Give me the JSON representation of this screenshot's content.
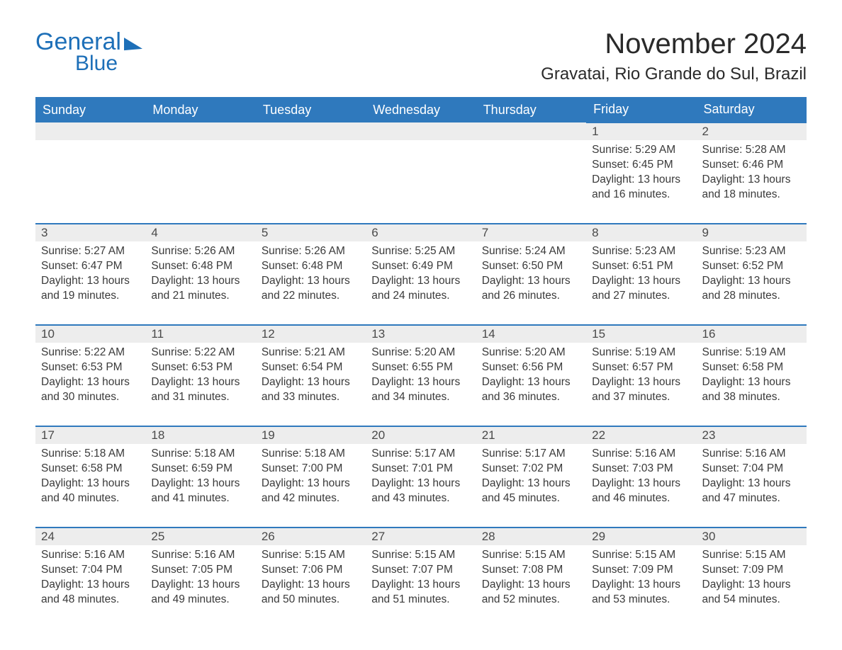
{
  "brand": {
    "line1": "General",
    "line2": "Blue",
    "color": "#1d6fb8"
  },
  "title": "November 2024",
  "location": "Gravatai, Rio Grande do Sul, Brazil",
  "colors": {
    "header_bg": "#2f79bd",
    "header_text": "#ffffff",
    "daynum_bg": "#ededed",
    "row_border": "#2f79bd",
    "body_text": "#3a3a3a",
    "page_bg": "#ffffff"
  },
  "typography": {
    "title_fontsize": 40,
    "location_fontsize": 24,
    "header_fontsize": 18,
    "daynum_fontsize": 17,
    "body_fontsize": 15.5
  },
  "layout": {
    "columns": 7,
    "weeks": 5,
    "start_weekday": "Sunday"
  },
  "weekdays": [
    "Sunday",
    "Monday",
    "Tuesday",
    "Wednesday",
    "Thursday",
    "Friday",
    "Saturday"
  ],
  "weeks": [
    [
      null,
      null,
      null,
      null,
      null,
      {
        "n": "1",
        "sunrise": "Sunrise: 5:29 AM",
        "sunset": "Sunset: 6:45 PM",
        "daylight": "Daylight: 13 hours and 16 minutes."
      },
      {
        "n": "2",
        "sunrise": "Sunrise: 5:28 AM",
        "sunset": "Sunset: 6:46 PM",
        "daylight": "Daylight: 13 hours and 18 minutes."
      }
    ],
    [
      {
        "n": "3",
        "sunrise": "Sunrise: 5:27 AM",
        "sunset": "Sunset: 6:47 PM",
        "daylight": "Daylight: 13 hours and 19 minutes."
      },
      {
        "n": "4",
        "sunrise": "Sunrise: 5:26 AM",
        "sunset": "Sunset: 6:48 PM",
        "daylight": "Daylight: 13 hours and 21 minutes."
      },
      {
        "n": "5",
        "sunrise": "Sunrise: 5:26 AM",
        "sunset": "Sunset: 6:48 PM",
        "daylight": "Daylight: 13 hours and 22 minutes."
      },
      {
        "n": "6",
        "sunrise": "Sunrise: 5:25 AM",
        "sunset": "Sunset: 6:49 PM",
        "daylight": "Daylight: 13 hours and 24 minutes."
      },
      {
        "n": "7",
        "sunrise": "Sunrise: 5:24 AM",
        "sunset": "Sunset: 6:50 PM",
        "daylight": "Daylight: 13 hours and 26 minutes."
      },
      {
        "n": "8",
        "sunrise": "Sunrise: 5:23 AM",
        "sunset": "Sunset: 6:51 PM",
        "daylight": "Daylight: 13 hours and 27 minutes."
      },
      {
        "n": "9",
        "sunrise": "Sunrise: 5:23 AM",
        "sunset": "Sunset: 6:52 PM",
        "daylight": "Daylight: 13 hours and 28 minutes."
      }
    ],
    [
      {
        "n": "10",
        "sunrise": "Sunrise: 5:22 AM",
        "sunset": "Sunset: 6:53 PM",
        "daylight": "Daylight: 13 hours and 30 minutes."
      },
      {
        "n": "11",
        "sunrise": "Sunrise: 5:22 AM",
        "sunset": "Sunset: 6:53 PM",
        "daylight": "Daylight: 13 hours and 31 minutes."
      },
      {
        "n": "12",
        "sunrise": "Sunrise: 5:21 AM",
        "sunset": "Sunset: 6:54 PM",
        "daylight": "Daylight: 13 hours and 33 minutes."
      },
      {
        "n": "13",
        "sunrise": "Sunrise: 5:20 AM",
        "sunset": "Sunset: 6:55 PM",
        "daylight": "Daylight: 13 hours and 34 minutes."
      },
      {
        "n": "14",
        "sunrise": "Sunrise: 5:20 AM",
        "sunset": "Sunset: 6:56 PM",
        "daylight": "Daylight: 13 hours and 36 minutes."
      },
      {
        "n": "15",
        "sunrise": "Sunrise: 5:19 AM",
        "sunset": "Sunset: 6:57 PM",
        "daylight": "Daylight: 13 hours and 37 minutes."
      },
      {
        "n": "16",
        "sunrise": "Sunrise: 5:19 AM",
        "sunset": "Sunset: 6:58 PM",
        "daylight": "Daylight: 13 hours and 38 minutes."
      }
    ],
    [
      {
        "n": "17",
        "sunrise": "Sunrise: 5:18 AM",
        "sunset": "Sunset: 6:58 PM",
        "daylight": "Daylight: 13 hours and 40 minutes."
      },
      {
        "n": "18",
        "sunrise": "Sunrise: 5:18 AM",
        "sunset": "Sunset: 6:59 PM",
        "daylight": "Daylight: 13 hours and 41 minutes."
      },
      {
        "n": "19",
        "sunrise": "Sunrise: 5:18 AM",
        "sunset": "Sunset: 7:00 PM",
        "daylight": "Daylight: 13 hours and 42 minutes."
      },
      {
        "n": "20",
        "sunrise": "Sunrise: 5:17 AM",
        "sunset": "Sunset: 7:01 PM",
        "daylight": "Daylight: 13 hours and 43 minutes."
      },
      {
        "n": "21",
        "sunrise": "Sunrise: 5:17 AM",
        "sunset": "Sunset: 7:02 PM",
        "daylight": "Daylight: 13 hours and 45 minutes."
      },
      {
        "n": "22",
        "sunrise": "Sunrise: 5:16 AM",
        "sunset": "Sunset: 7:03 PM",
        "daylight": "Daylight: 13 hours and 46 minutes."
      },
      {
        "n": "23",
        "sunrise": "Sunrise: 5:16 AM",
        "sunset": "Sunset: 7:04 PM",
        "daylight": "Daylight: 13 hours and 47 minutes."
      }
    ],
    [
      {
        "n": "24",
        "sunrise": "Sunrise: 5:16 AM",
        "sunset": "Sunset: 7:04 PM",
        "daylight": "Daylight: 13 hours and 48 minutes."
      },
      {
        "n": "25",
        "sunrise": "Sunrise: 5:16 AM",
        "sunset": "Sunset: 7:05 PM",
        "daylight": "Daylight: 13 hours and 49 minutes."
      },
      {
        "n": "26",
        "sunrise": "Sunrise: 5:15 AM",
        "sunset": "Sunset: 7:06 PM",
        "daylight": "Daylight: 13 hours and 50 minutes."
      },
      {
        "n": "27",
        "sunrise": "Sunrise: 5:15 AM",
        "sunset": "Sunset: 7:07 PM",
        "daylight": "Daylight: 13 hours and 51 minutes."
      },
      {
        "n": "28",
        "sunrise": "Sunrise: 5:15 AM",
        "sunset": "Sunset: 7:08 PM",
        "daylight": "Daylight: 13 hours and 52 minutes."
      },
      {
        "n": "29",
        "sunrise": "Sunrise: 5:15 AM",
        "sunset": "Sunset: 7:09 PM",
        "daylight": "Daylight: 13 hours and 53 minutes."
      },
      {
        "n": "30",
        "sunrise": "Sunrise: 5:15 AM",
        "sunset": "Sunset: 7:09 PM",
        "daylight": "Daylight: 13 hours and 54 minutes."
      }
    ]
  ]
}
